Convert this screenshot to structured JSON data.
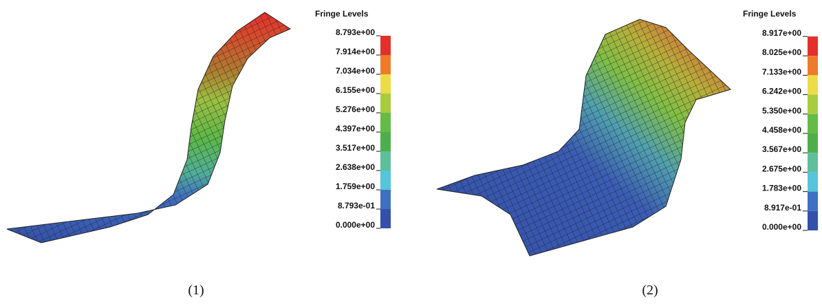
{
  "panels": [
    {
      "legend_title": "Fringe Levels",
      "levels": [
        "8.793e+00",
        "7.914e+00",
        "7.034e+00",
        "6.155e+00",
        "5.276e+00",
        "4.397e+00",
        "3.517e+00",
        "2.638e+00",
        "1.759e+00",
        "8.793e-01",
        "0.000e+00"
      ],
      "caption": "(1)"
    },
    {
      "legend_title": "Fringe Levels",
      "levels": [
        "8.917e+00",
        "8.025e+00",
        "7.133e+00",
        "6.242e+00",
        "5.350e+00",
        "4.458e+00",
        "3.567e+00",
        "2.675e+00",
        "1.783e+00",
        "8.917e-01",
        "0.000e+00"
      ],
      "caption": "(2)"
    }
  ],
  "fringe_colors": [
    "#e3302b",
    "#ee7a2c",
    "#ecdc48",
    "#a8cc3e",
    "#64bb47",
    "#4fae4c",
    "#5dbf9b",
    "#56c4d9",
    "#3f70c2",
    "#3450a8"
  ]
}
